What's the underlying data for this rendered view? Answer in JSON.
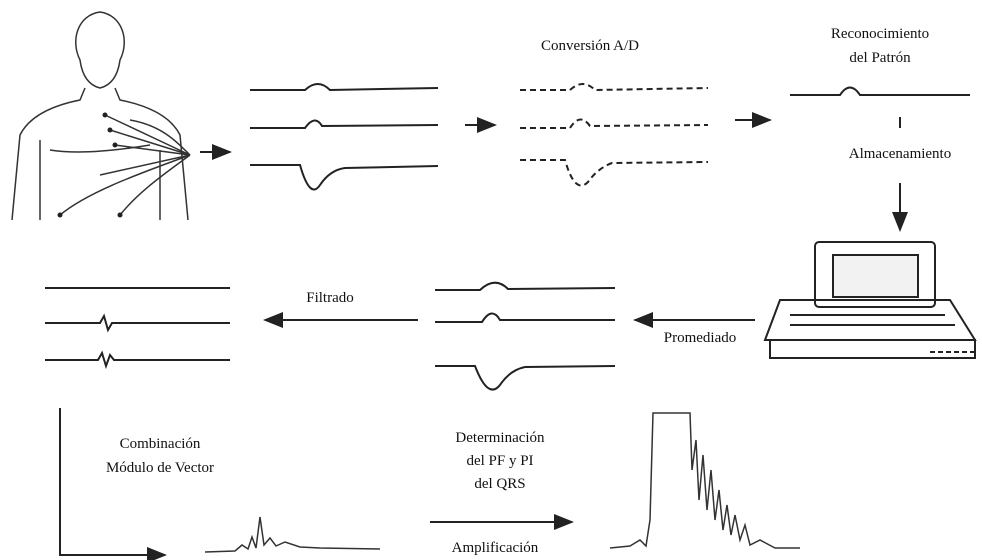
{
  "labels": {
    "conversion": "Conversión A/D",
    "recognition": [
      "Reconocimiento",
      "del Patrón"
    ],
    "storage": "Almacenamiento",
    "averaging": "Promediado",
    "filtering": "Filtrado",
    "combination": [
      "Combinación",
      "Módulo de Vector"
    ],
    "determination": [
      "Determinación",
      "del PF y PI",
      "del QRS"
    ],
    "amplification": "Amplificación"
  }
}
